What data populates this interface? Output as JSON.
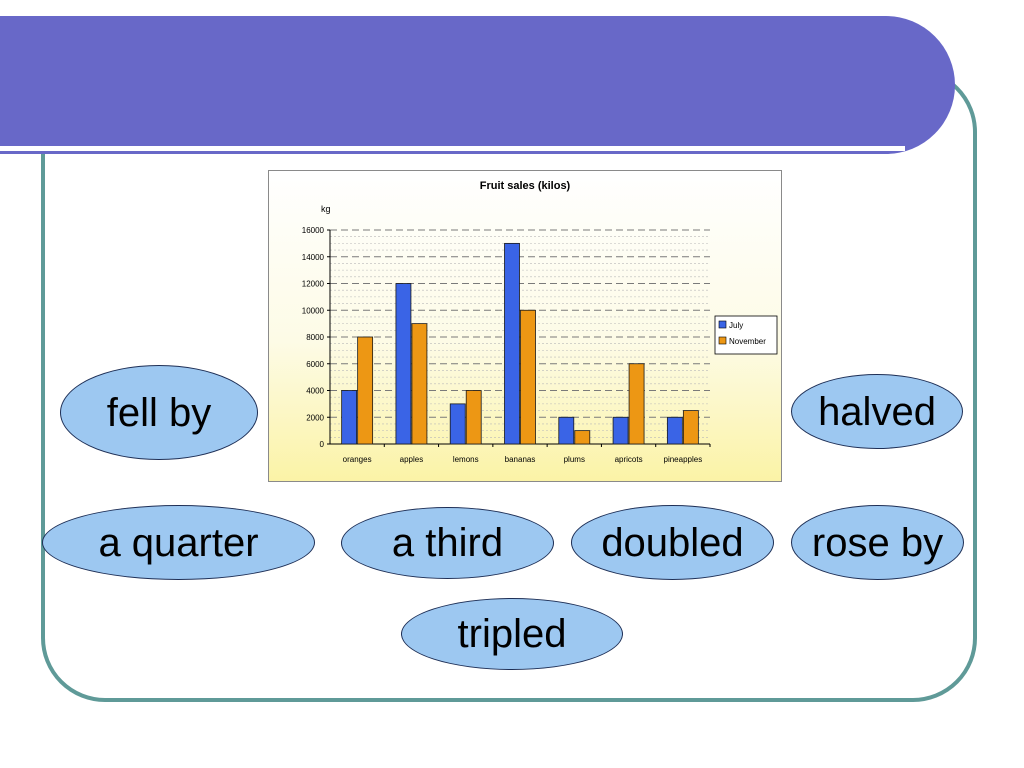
{
  "colors": {
    "banner": "#6868c8",
    "frame": "#5f9a98",
    "oval_fill": "#9dc8f1",
    "july": "#3a64e6",
    "november": "#ed9714"
  },
  "chart_data": {
    "type": "bar",
    "title": "Fruit sales (kilos)",
    "ylabel": "kg",
    "xlabel": "",
    "ylim": [
      0,
      16000
    ],
    "yticks": [
      0,
      2000,
      4000,
      6000,
      8000,
      10000,
      12000,
      14000,
      16000
    ],
    "categories": [
      "oranges",
      "apples",
      "lemons",
      "bananas",
      "plums",
      "apricots",
      "pineapples"
    ],
    "series": [
      {
        "name": "July",
        "color": "#3a64e6",
        "values": [
          4000,
          12000,
          3000,
          15000,
          2000,
          2000,
          2000
        ]
      },
      {
        "name": "November",
        "color": "#ed9714",
        "values": [
          8000,
          9000,
          4000,
          10000,
          1000,
          6000,
          2500
        ]
      }
    ],
    "grid": true,
    "legend": "right"
  },
  "phrases": {
    "fell_by": "fell by",
    "halved": "halved",
    "a_quarter": "a quarter",
    "a_third": "a third",
    "doubled": "doubled",
    "rose_by": "rose by",
    "tripled": "tripled"
  }
}
